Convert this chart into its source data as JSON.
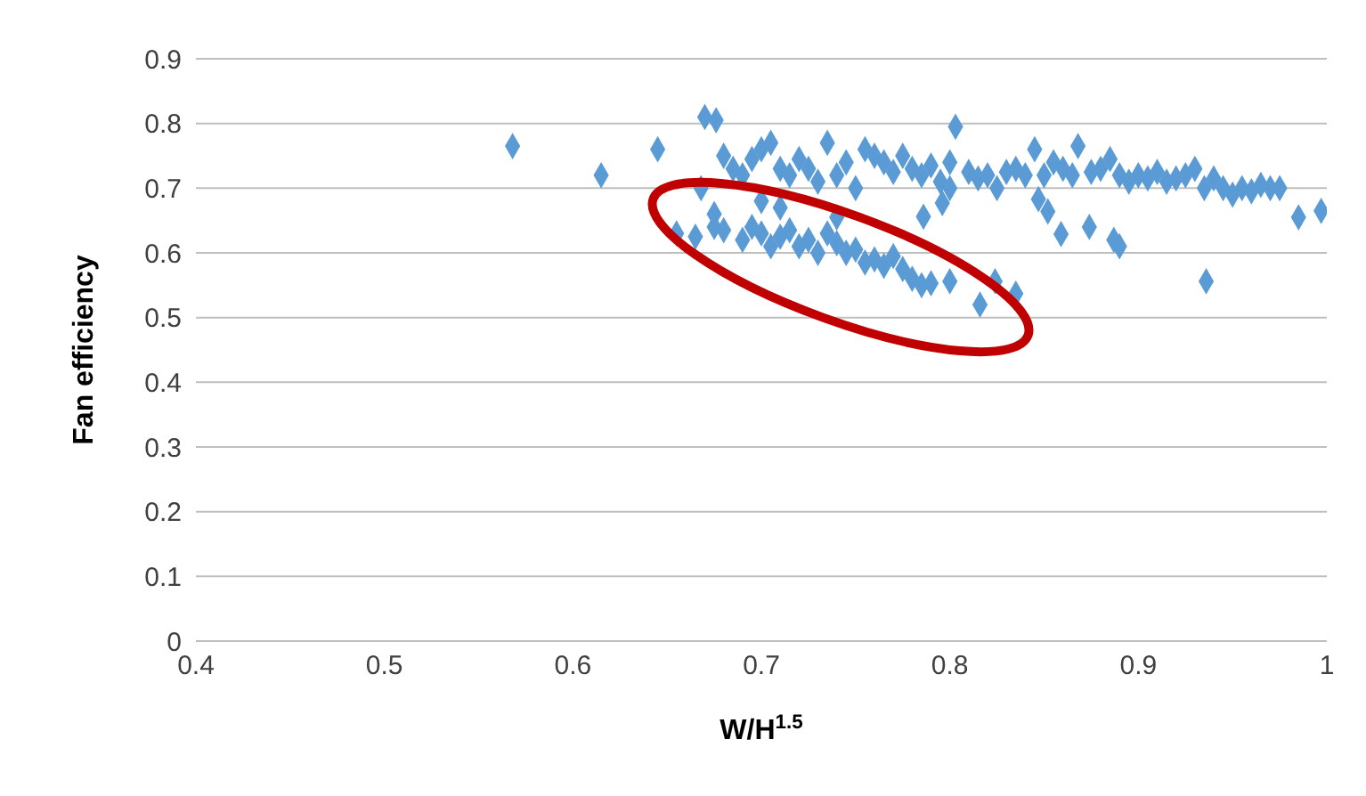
{
  "chart_data": {
    "type": "scatter",
    "xlabel": "W/H$^{1.5}$",
    "ylabel": "Fan efficiency",
    "xlim": [
      0.4,
      1
    ],
    "xticks": [
      0.4,
      0.5,
      0.6,
      0.7,
      0.8,
      0.9,
      1
    ],
    "ylim": [
      0,
      0.9
    ],
    "yticks": [
      0,
      0.1,
      0.2,
      0.3,
      0.4,
      0.5,
      0.6,
      0.7,
      0.8,
      0.9
    ],
    "grid": "y",
    "marker": "diamond",
    "legend": false,
    "series": [
      {
        "color": "#5b9bd5",
        "x": [
          0.568,
          0.615,
          0.645,
          0.67,
          0.676,
          0.668,
          0.68,
          0.685,
          0.69,
          0.695,
          0.7,
          0.705,
          0.71,
          0.715,
          0.72,
          0.725,
          0.73,
          0.735,
          0.74,
          0.745,
          0.75,
          0.755,
          0.76,
          0.765,
          0.77,
          0.775,
          0.78,
          0.785,
          0.79,
          0.795,
          0.8,
          0.803,
          0.81,
          0.815,
          0.82,
          0.825,
          0.83,
          0.835,
          0.84,
          0.845,
          0.85,
          0.855,
          0.86,
          0.865,
          0.868,
          0.875,
          0.88,
          0.885,
          0.89,
          0.895,
          0.9,
          0.905,
          0.91,
          0.915,
          0.92,
          0.925,
          0.93,
          0.935,
          0.94,
          0.945,
          0.95,
          0.955,
          0.96,
          0.965,
          0.97,
          0.975,
          0.985,
          0.997,
          0.8,
          0.847,
          0.852,
          0.859,
          0.874,
          0.887,
          0.89,
          0.936,
          0.796,
          0.786,
          0.655,
          0.665,
          0.675,
          0.68,
          0.69,
          0.695,
          0.7,
          0.705,
          0.71,
          0.715,
          0.72,
          0.725,
          0.73,
          0.735,
          0.74,
          0.745,
          0.75,
          0.755,
          0.76,
          0.765,
          0.77,
          0.775,
          0.78,
          0.785,
          0.79,
          0.8,
          0.816,
          0.824,
          0.835,
          0.7,
          0.71,
          0.74,
          0.675
        ],
        "values": [
          0.765,
          0.72,
          0.76,
          0.81,
          0.805,
          0.7,
          0.75,
          0.73,
          0.72,
          0.745,
          0.76,
          0.77,
          0.73,
          0.72,
          0.745,
          0.73,
          0.71,
          0.77,
          0.72,
          0.74,
          0.7,
          0.76,
          0.75,
          0.74,
          0.725,
          0.75,
          0.73,
          0.72,
          0.735,
          0.71,
          0.74,
          0.795,
          0.725,
          0.715,
          0.72,
          0.7,
          0.725,
          0.73,
          0.72,
          0.76,
          0.72,
          0.74,
          0.73,
          0.72,
          0.765,
          0.725,
          0.73,
          0.745,
          0.72,
          0.71,
          0.72,
          0.715,
          0.725,
          0.71,
          0.715,
          0.72,
          0.73,
          0.7,
          0.715,
          0.7,
          0.69,
          0.7,
          0.695,
          0.705,
          0.7,
          0.7,
          0.655,
          0.665,
          0.7,
          0.683,
          0.664,
          0.629,
          0.64,
          0.62,
          0.61,
          0.556,
          0.677,
          0.656,
          0.63,
          0.625,
          0.64,
          0.635,
          0.62,
          0.64,
          0.63,
          0.61,
          0.625,
          0.635,
          0.61,
          0.62,
          0.6,
          0.63,
          0.615,
          0.6,
          0.605,
          0.585,
          0.59,
          0.58,
          0.595,
          0.575,
          0.56,
          0.55,
          0.553,
          0.556,
          0.52,
          0.556,
          0.537,
          0.68,
          0.67,
          0.655,
          0.66
        ]
      }
    ]
  }
}
